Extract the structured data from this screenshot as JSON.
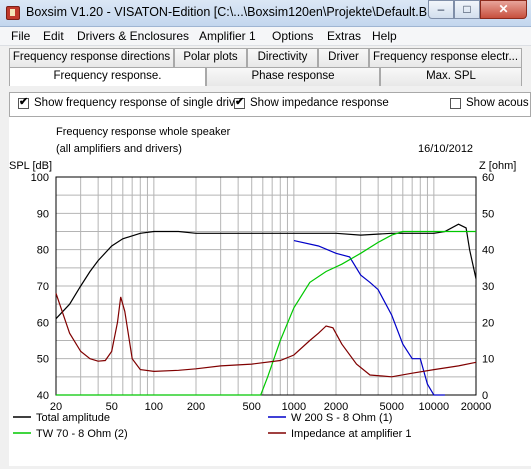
{
  "window": {
    "title": "Boxsim V1.20 - VISATON-Edition [C:\\...\\Boxsim120en\\Projekte\\Default.BPJ]",
    "min_glyph": "–",
    "max_glyph": "□",
    "close_glyph": "✕"
  },
  "menu": [
    "File",
    "Edit",
    "Drivers & Enclosures",
    "Amplifier 1",
    "Options",
    "Extras",
    "Help"
  ],
  "tabs_row1": [
    "Frequency response directions",
    "Polar plots",
    "Directivity",
    "Driver",
    "Frequency response electr..."
  ],
  "tabs_row2": [
    "Frequency response.",
    "Phase response",
    "Max. SPL"
  ],
  "options": {
    "single_drive_label": "Show frequency response of single drive",
    "impedance_label": "Show impedance response",
    "acoustic_label": "Show acous",
    "tick": "✔"
  },
  "colors": {
    "total": "#000000",
    "woofer": "#0000c8",
    "tweeter": "#00c800",
    "impedance": "#800000",
    "grid": "#b4b4b4"
  },
  "chart_data": {
    "type": "line",
    "title": "Frequency response whole speaker",
    "subtitle": "(all amplifiers and drivers)",
    "date": "16/10/2012",
    "ylabel_left": "SPL [dB]",
    "ylabel_right": "Z [ohm]",
    "x_scale": "log",
    "xlim": [
      20,
      20000
    ],
    "ylim_left": [
      40,
      100
    ],
    "ylim_right": [
      0,
      60
    ],
    "x_ticks": [
      20,
      50,
      100,
      200,
      500,
      1000,
      2000,
      5000,
      10000,
      20000
    ],
    "x_tick_labels": [
      "20",
      "50",
      "100",
      "200",
      "500",
      "1000",
      "2000",
      "5000",
      "10000",
      "20000"
    ],
    "y_left_ticks": [
      "40",
      "50",
      "60",
      "70",
      "80",
      "90",
      "100"
    ],
    "y_right_ticks": [
      "0",
      "10",
      "20",
      "30",
      "40",
      "50",
      "60"
    ],
    "grid": true,
    "legend_position": "bottom",
    "series": [
      {
        "name": "Total amplitude",
        "axis": "left",
        "x": [
          20,
          25,
          30,
          35,
          40,
          50,
          60,
          80,
          100,
          150,
          200,
          300,
          500,
          800,
          1000,
          1500,
          2000,
          3000,
          5000,
          8000,
          10000,
          12000,
          15000,
          17000,
          18000,
          20000
        ],
        "y": [
          61,
          65,
          70,
          74,
          77,
          81,
          83,
          84.5,
          85,
          85,
          84.5,
          84.5,
          84.5,
          84.5,
          84.5,
          84.5,
          84.5,
          84,
          84.5,
          84.5,
          84.5,
          85,
          87,
          86,
          80,
          72
        ]
      },
      {
        "name": "W 200 S - 8 Ohm (1)",
        "axis": "left",
        "x": [
          1000,
          1500,
          2000,
          2500,
          3000,
          3500,
          4000,
          5000,
          6000,
          7000,
          8000,
          9000,
          10000,
          12000
        ],
        "y": [
          82.5,
          81,
          79,
          78,
          73,
          71,
          69,
          62,
          54,
          50,
          50,
          43,
          40,
          40
        ]
      },
      {
        "name": "TW 70 - 8 Ohm (2)",
        "axis": "left",
        "x": [
          20,
          580,
          650,
          800,
          1000,
          1300,
          1700,
          2200,
          3000,
          4000,
          5000,
          6000,
          8000,
          10000,
          15000,
          20000
        ],
        "y": [
          40,
          40,
          45,
          55,
          64,
          71,
          74,
          76,
          79,
          82,
          84,
          85,
          85,
          85,
          85,
          85
        ]
      },
      {
        "name": "Impedance at amplifier 1",
        "axis": "right",
        "x": [
          20,
          25,
          30,
          35,
          40,
          45,
          50,
          55,
          58,
          62,
          70,
          80,
          100,
          150,
          200,
          300,
          500,
          800,
          1000,
          1300,
          1500,
          1700,
          1900,
          2200,
          2800,
          3500,
          5000,
          7000,
          10000,
          15000,
          20000
        ],
        "y": [
          28,
          17,
          12,
          10,
          9.3,
          9.5,
          12,
          20,
          27,
          23,
          10,
          7,
          6.5,
          6.8,
          7.2,
          8,
          8.5,
          9.5,
          11,
          15,
          17,
          19,
          18.5,
          14,
          8.5,
          5.5,
          5,
          6,
          7,
          8,
          9
        ]
      }
    ]
  }
}
